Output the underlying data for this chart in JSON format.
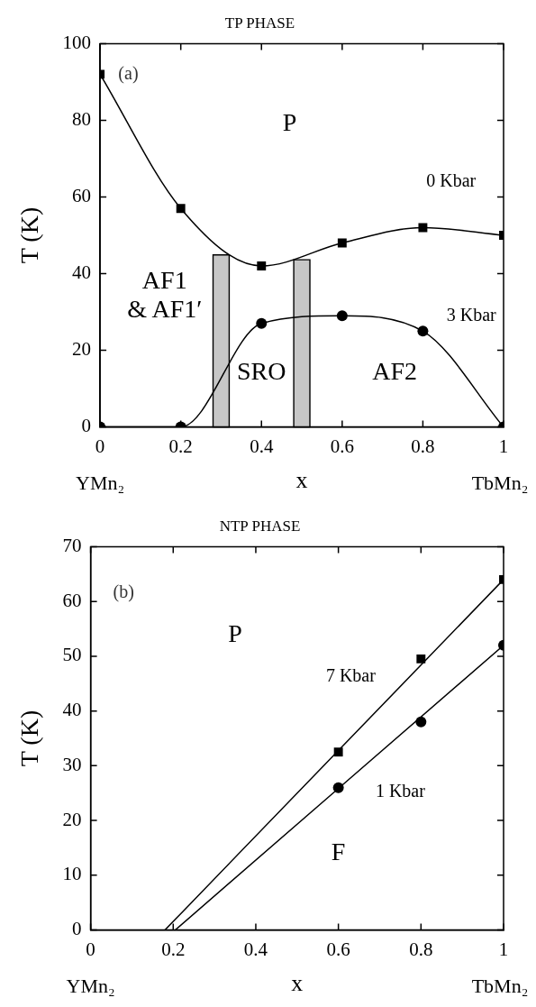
{
  "chart_data": [
    {
      "type": "line",
      "title": "TP PHASE",
      "xlabel": "x",
      "ylabel": "T (K)",
      "xlim": [
        0,
        1
      ],
      "xticks": [
        0,
        0.2,
        0.4,
        0.6,
        0.8,
        1
      ],
      "ylim": [
        0,
        100
      ],
      "yticks": [
        0,
        20,
        40,
        60,
        80,
        100
      ],
      "grid": false,
      "legend": false,
      "series": [
        {
          "color": "#000000",
          "marker": "square",
          "x": [
            0,
            0.2,
            0.4,
            0.6,
            0.8,
            1
          ],
          "values": [
            92,
            57,
            42,
            48,
            52,
            50
          ]
        },
        {
          "color": "#000000",
          "marker": "circle",
          "x": [
            0,
            0.2,
            0.4,
            0.6,
            0.8,
            1
          ],
          "values": [
            0,
            0,
            27,
            29,
            25,
            0
          ]
        }
      ],
      "bands": [
        {
          "axis": "x",
          "from": 0.28,
          "to": 0.32,
          "color": "#000000"
        },
        {
          "axis": "x",
          "from": 0.48,
          "to": 0.52,
          "color": "#000000"
        }
      ],
      "annotations": [
        "(a)",
        "P",
        "0 Kbar",
        "3 Kbar",
        "AF1\n& AF1′",
        "SRO",
        "AF2",
        "YMn₂",
        "TbMn₂"
      ]
    },
    {
      "type": "line",
      "title": "NTP PHASE",
      "xlabel": "x",
      "ylabel": "T (K)",
      "xlim": [
        0,
        1
      ],
      "xticks": [
        0,
        0.2,
        0.4,
        0.6,
        0.8,
        1
      ],
      "ylim": [
        0,
        70
      ],
      "yticks": [
        0,
        10,
        20,
        30,
        40,
        50,
        60,
        70
      ],
      "grid": false,
      "legend": false,
      "series": [
        {
          "color": "#000000",
          "marker": "none",
          "x": [
            0.18,
            1
          ],
          "values": [
            0,
            64
          ]
        },
        {
          "color": "#000000",
          "marker": "none",
          "x": [
            0.205,
            1
          ],
          "values": [
            0,
            52
          ]
        },
        {
          "type": "scatter",
          "color": "#000000",
          "marker": "square",
          "x": [
            0.6,
            0.8,
            1
          ],
          "values": [
            32.5,
            49.5,
            64
          ]
        },
        {
          "type": "scatter",
          "color": "#000000",
          "marker": "circle",
          "x": [
            0.6,
            0.8,
            1
          ],
          "values": [
            26,
            38,
            52
          ]
        }
      ],
      "annotations": [
        "(b)",
        "P",
        "7 Kbar",
        "1 Kbar",
        "F",
        "YMn₂",
        "TbMn₂"
      ]
    }
  ]
}
